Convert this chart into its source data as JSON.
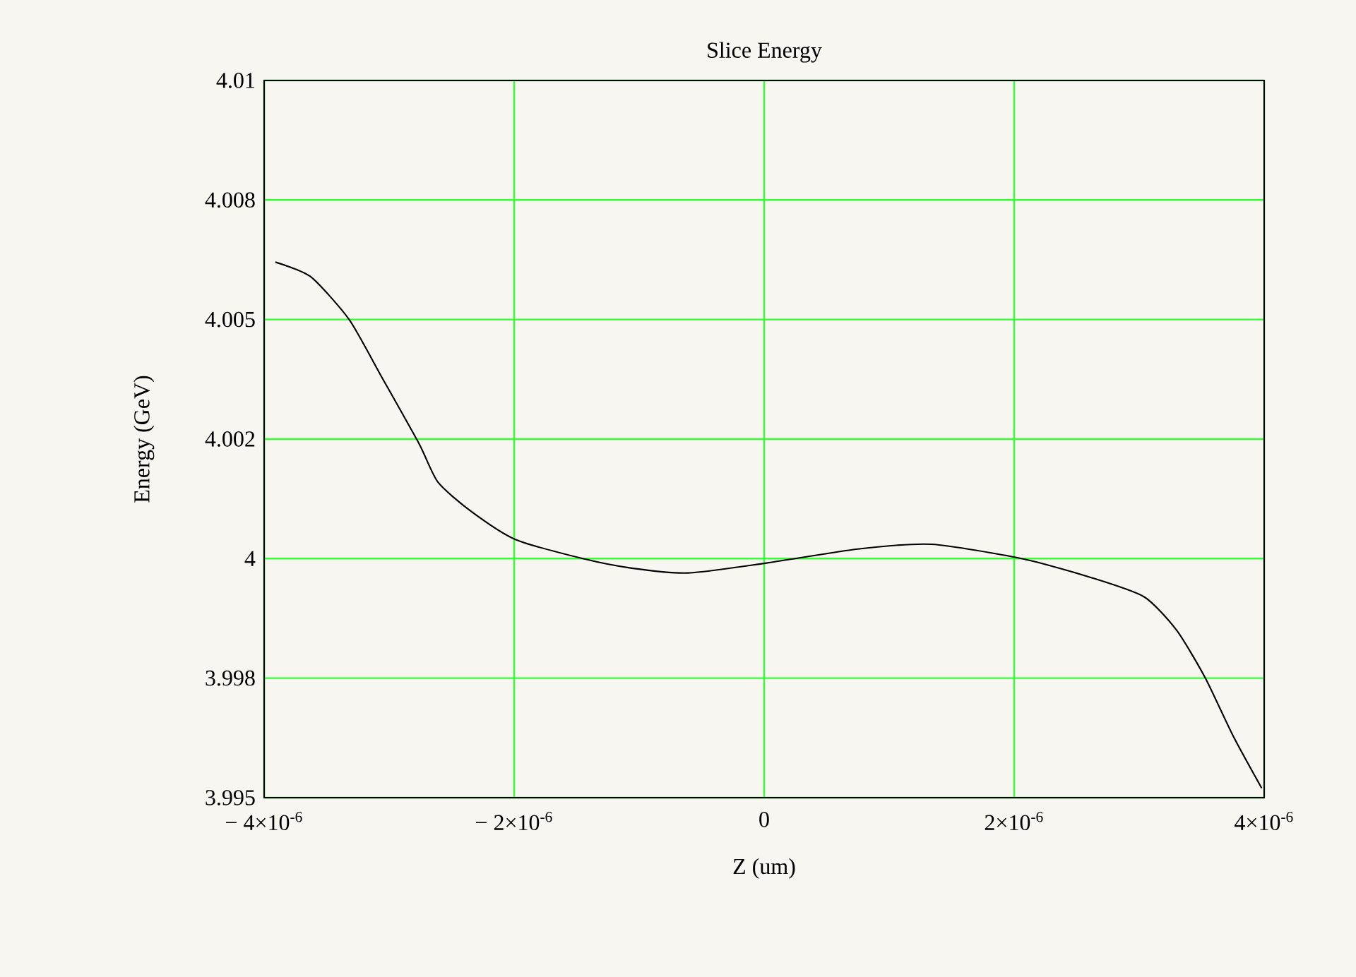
{
  "chart_data": {
    "type": "line",
    "title": "Slice Energy",
    "xlabel": "Z (um)",
    "ylabel": "Energy (GeV)",
    "x": [
      -3.91e-06,
      -3.63e-06,
      -3.32e-06,
      -3.06e-06,
      -2.76e-06,
      -2.61e-06,
      -2.35e-06,
      -1.99e-06,
      -1.45e-06,
      -1.06e-06,
      -6.1e-07,
      0.0,
      7.5e-07,
      1.34e-06,
      2.06e-06,
      2.62e-06,
      3.04e-06,
      3.3e-06,
      3.53e-06,
      3.75e-06,
      3.98e-06
    ],
    "series": [
      {
        "color": "#000000",
        "values": [
          4.0062,
          4.0059,
          4.005,
          4.0038,
          4.0024,
          4.0016,
          4.001,
          4.0004,
          4.0,
          3.9998,
          3.9997,
          3.9999,
          4.0002,
          4.0003,
          4.0,
          3.9996,
          3.9992,
          3.9985,
          3.9975,
          3.9963,
          3.9952
        ]
      }
    ],
    "xlim": [
      -4e-06,
      4e-06
    ],
    "xticks": [
      {
        "value": -4e-06,
        "label": "− 4×10$^{-6}$"
      },
      {
        "value": -2e-06,
        "label": "− 2×10$^{-6}$"
      },
      {
        "value": 0,
        "label": "0"
      },
      {
        "value": 2e-06,
        "label": "2×10$^{-6}$"
      },
      {
        "value": 4e-06,
        "label": "4×10$^{-6}$"
      }
    ],
    "ylim": [
      3.995,
      4.01
    ],
    "yticks": [
      3.995,
      {
        "value": 3.9975,
        "label": "3.998"
      },
      4,
      {
        "value": 4.0025,
        "label": "4.002"
      },
      4.005,
      {
        "value": 4.0075,
        "label": "4.008"
      },
      4.01
    ],
    "grid": true,
    "marker": "none",
    "line_style": "solid"
  }
}
